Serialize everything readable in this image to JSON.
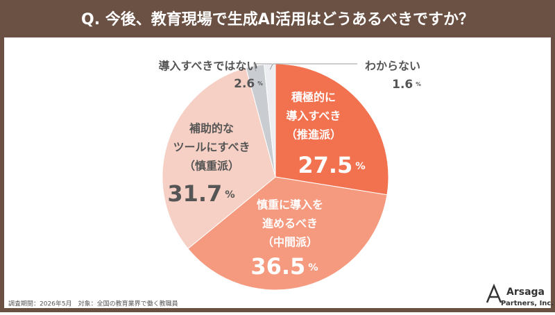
{
  "chart_data": {
    "type": "pie",
    "title": "Q. 今後、教育現場で生成AI活用はどうあるべきですか？",
    "categories": [
      [
        "積極的に",
        "導入すべき",
        "（推進派）"
      ],
      [
        "慎重に導入を",
        "進めるべき",
        "（中間派）"
      ],
      [
        "補助的な",
        "ツールにすべき",
        "（慎重派）"
      ],
      [
        "導入すべきではない"
      ],
      [
        "わからない"
      ]
    ],
    "values": [
      27.5,
      36.5,
      31.7,
      2.6,
      1.6
    ],
    "unit": "%",
    "colors": [
      "#f2714f",
      "#f59a7f",
      "#f6d0c4",
      "#c9ccd1",
      "#eceef1"
    ],
    "footnote": "調査期間：2026年5月　対象：全国の教育業界で働く教職員",
    "logo": [
      "Arsaga",
      "Partners, Inc."
    ]
  }
}
